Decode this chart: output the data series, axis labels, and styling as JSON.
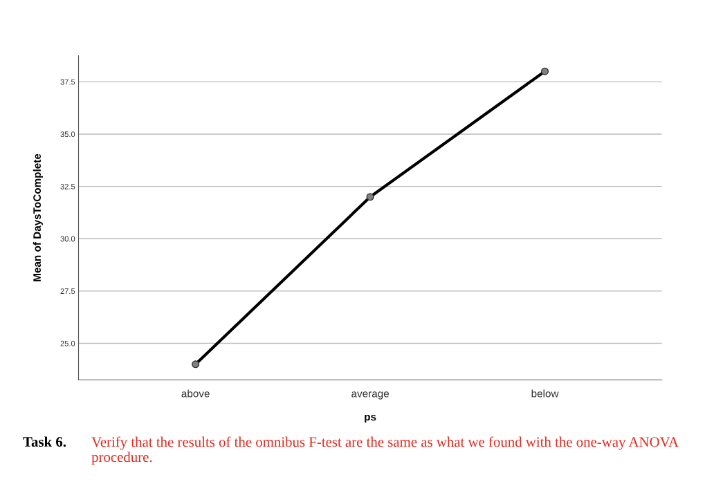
{
  "chart_data": {
    "type": "line",
    "xlabel": "ps",
    "ylabel": "Mean of DaysToComplete",
    "categories": [
      "above",
      "average",
      "below"
    ],
    "series": [
      {
        "color": "#000000",
        "values": [
          24.0,
          32.0,
          38.0
        ]
      }
    ],
    "marker": "circle",
    "line_style": "solid",
    "ylim": [
      23.25,
      38.75
    ],
    "yticks": [
      {
        "value": 25,
        "label": "25.0"
      },
      {
        "value": 27.5,
        "label": "27.5"
      },
      {
        "value": 30,
        "label": "30.0"
      },
      {
        "value": 32.5,
        "label": "32.5"
      },
      {
        "value": 35,
        "label": "35.0"
      },
      {
        "value": 37.5,
        "label": "37.5"
      }
    ],
    "grid": "y",
    "annotations": [
      "Task 6.",
      "Verify that the results of the omnibus F-test are the same as what we found with the one-way ANOVA procedure."
    ]
  }
}
